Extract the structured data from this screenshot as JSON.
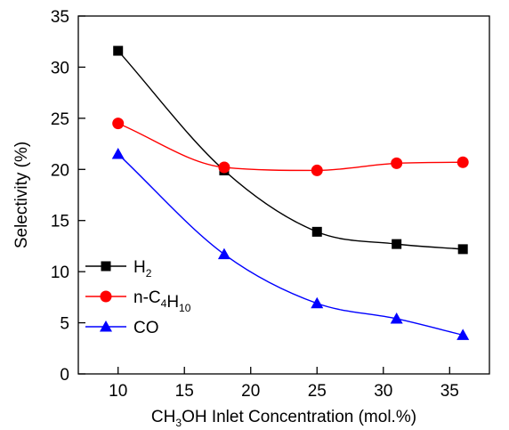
{
  "chart_data": {
    "type": "line",
    "xlabel": {
      "pre": "CH",
      "sub": "3",
      "post": "OH Inlet Concentration (mol.%)"
    },
    "ylabel": "Selectivity (%)",
    "xlim": [
      7,
      38
    ],
    "ylim": [
      0,
      35
    ],
    "x_ticks": [
      10,
      15,
      20,
      25,
      30,
      35
    ],
    "y_ticks": [
      0,
      5,
      10,
      15,
      20,
      25,
      30,
      35
    ],
    "grid": false,
    "legend_position": "bottom-left",
    "x": [
      10,
      18,
      25,
      31,
      36
    ],
    "series": [
      {
        "name": "H2",
        "label_parts": [
          {
            "t": "H",
            "sub": false
          },
          {
            "t": "2",
            "sub": true
          }
        ],
        "marker": "square",
        "color": "#000000",
        "values": [
          31.6,
          19.9,
          13.9,
          12.7,
          12.2
        ]
      },
      {
        "name": "n-C4H10",
        "label_parts": [
          {
            "t": "n-C",
            "sub": false
          },
          {
            "t": "4",
            "sub": true
          },
          {
            "t": "H",
            "sub": false
          },
          {
            "t": "10",
            "sub": true
          }
        ],
        "marker": "circle",
        "color": "#ff0000",
        "values": [
          24.5,
          20.2,
          19.9,
          20.6,
          20.7
        ]
      },
      {
        "name": "CO",
        "label_parts": [
          {
            "t": "CO",
            "sub": false
          }
        ],
        "marker": "triangle",
        "color": "#0000ff",
        "values": [
          21.5,
          11.7,
          6.9,
          5.4,
          3.8
        ]
      }
    ]
  }
}
